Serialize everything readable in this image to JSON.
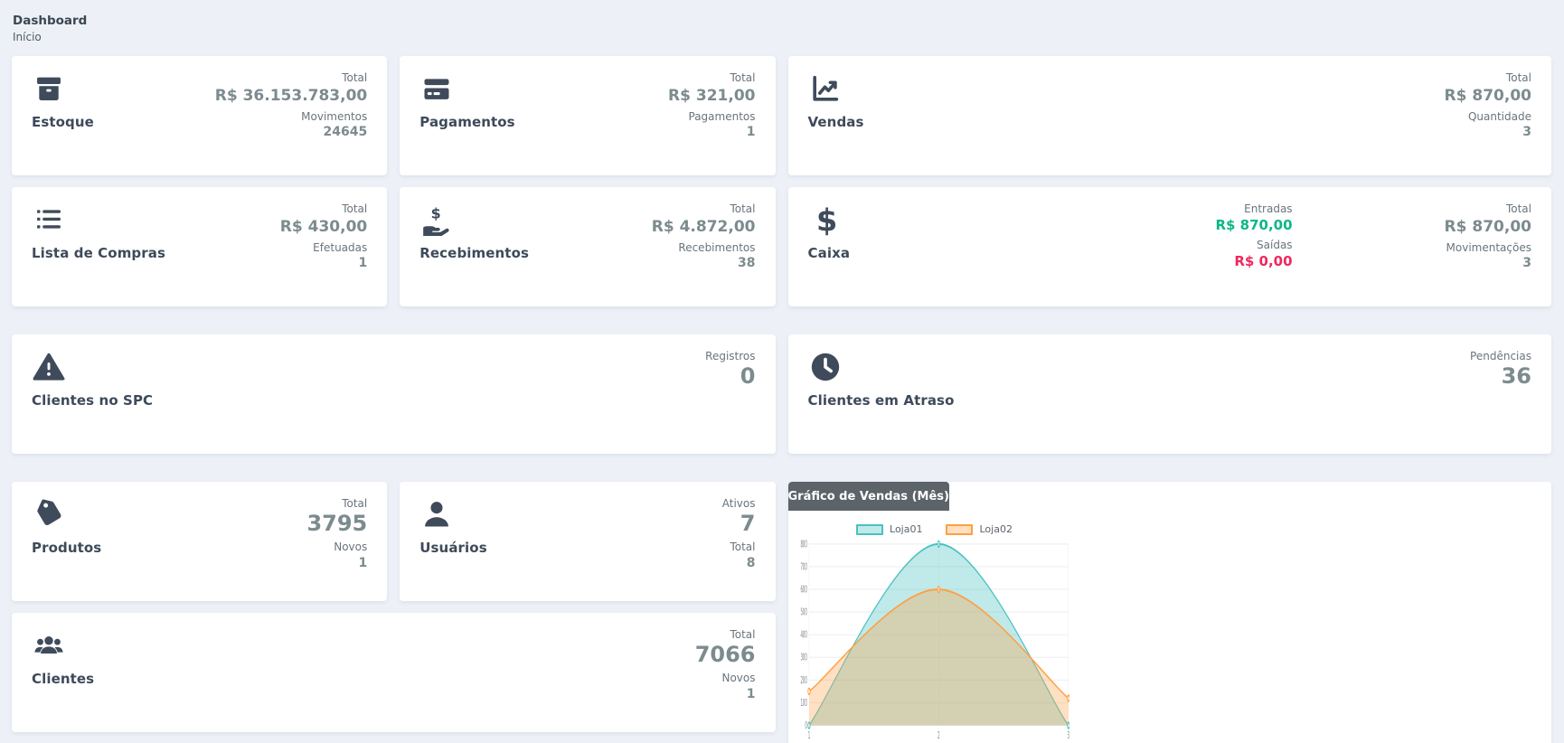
{
  "page": {
    "title": "Dashboard",
    "breadcrumb": "Início"
  },
  "colors": {
    "positive": "#0cb785",
    "negative": "#f0275f",
    "icon": "#3f4b5b",
    "value": "#7c8b8e",
    "chart_header_bg": "#5c6369",
    "background": "#edf1f7"
  },
  "cards": {
    "estoque": {
      "title": "Estoque",
      "icon": "box-icon",
      "metrics": [
        {
          "label": "Total",
          "value": "R$ 36.153.783,00"
        },
        {
          "label": "Movimentos",
          "value": "24645"
        }
      ]
    },
    "pagamentos": {
      "title": "Pagamentos",
      "icon": "credit-card-icon",
      "metrics": [
        {
          "label": "Total",
          "value": "R$ 321,00"
        },
        {
          "label": "Pagamentos",
          "value": "1"
        }
      ]
    },
    "vendas": {
      "title": "Vendas",
      "icon": "chart-line-icon",
      "metrics": [
        {
          "label": "Total",
          "value": "R$ 870,00"
        },
        {
          "label": "Quantidade",
          "value": "3"
        }
      ]
    },
    "lista_compras": {
      "title": "Lista de Compras",
      "icon": "list-icon",
      "metrics": [
        {
          "label": "Total",
          "value": "R$ 430,00"
        },
        {
          "label": "Efetuadas",
          "value": "1"
        }
      ]
    },
    "recebimentos": {
      "title": "Recebimentos",
      "icon": "hand-holding-dollar-icon",
      "metrics": [
        {
          "label": "Total",
          "value": "R$ 4.872,00"
        },
        {
          "label": "Recebimentos",
          "value": "38"
        }
      ]
    },
    "caixa": {
      "title": "Caixa",
      "icon": "dollar-sign-icon",
      "metrics_flow": [
        {
          "label": "Entradas",
          "value": "R$ 870,00",
          "tone": "positive"
        },
        {
          "label": "Saídas",
          "value": "R$ 0,00",
          "tone": "negative"
        }
      ],
      "metrics_total": [
        {
          "label": "Total",
          "value": "R$ 870,00"
        },
        {
          "label": "Movimentações",
          "value": "3"
        }
      ]
    },
    "clientes_spc": {
      "title": "Clientes no SPC",
      "icon": "warning-triangle-icon",
      "metrics": [
        {
          "label": "Registros",
          "value": "0"
        }
      ]
    },
    "clientes_atraso": {
      "title": "Clientes em Atraso",
      "icon": "clock-icon",
      "metrics": [
        {
          "label": "Pendências",
          "value": "36"
        }
      ]
    },
    "produtos": {
      "title": "Produtos",
      "icon": "tag-icon",
      "metrics": [
        {
          "label": "Total",
          "value": "3795"
        },
        {
          "label": "Novos",
          "value": "1"
        }
      ]
    },
    "usuarios": {
      "title": "Usuários",
      "icon": "user-icon",
      "metrics": [
        {
          "label": "Ativos",
          "value": "7"
        },
        {
          "label": "Total",
          "value": "8"
        }
      ]
    },
    "clientes": {
      "title": "Clientes",
      "icon": "users-icon",
      "metrics": [
        {
          "label": "Total",
          "value": "7066"
        },
        {
          "label": "Novos",
          "value": "1"
        }
      ]
    }
  },
  "chart_data": {
    "type": "area",
    "title": "Gráfico de Vendas (Mês)",
    "x": [
      "1",
      "2",
      "3"
    ],
    "series": [
      {
        "name": "Loja01",
        "values": [
          0,
          800,
          0
        ],
        "color": "#4bc0c0",
        "fill": "rgba(75,192,192,0.35)"
      },
      {
        "name": "Loja02",
        "values": [
          150,
          600,
          120
        ],
        "color": "#ff9f40",
        "fill": "rgba(255,159,64,0.32)"
      }
    ],
    "xlabel": "",
    "ylabel": "",
    "ylim": [
      0,
      800
    ],
    "ytick": 100,
    "grid": true,
    "legend_position": "top"
  }
}
